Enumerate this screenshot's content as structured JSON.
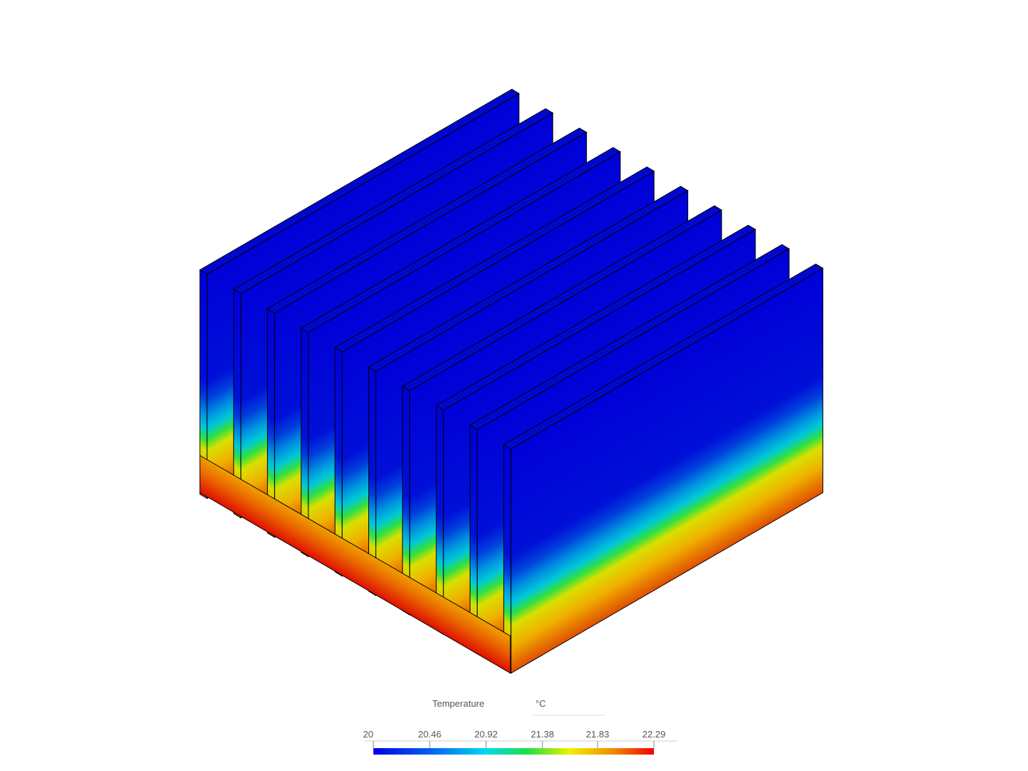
{
  "legend": {
    "title": "Temperature",
    "unit": "°C",
    "ticks": [
      20,
      20.46,
      20.92,
      21.38,
      21.83,
      22.29
    ]
  }
}
